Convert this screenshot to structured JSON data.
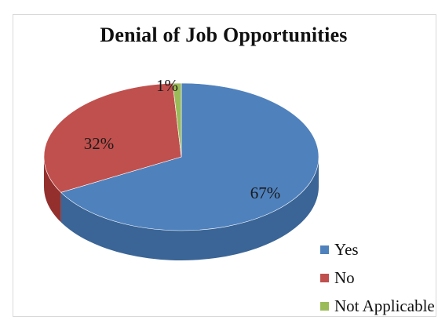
{
  "chart_data": {
    "type": "pie",
    "title": "Denial of Job Opportunities",
    "slices": [
      {
        "label": "Yes",
        "value": 67,
        "display": "67%",
        "color": "#4f81bd",
        "side_color": "#3a6596"
      },
      {
        "label": "No",
        "value": 32,
        "display": "32%",
        "color": "#c0504d",
        "side_color": "#93302e"
      },
      {
        "label": "Not Applicable",
        "value": 1,
        "display": "1%",
        "color": "#9bbb59",
        "side_color": "#74923a"
      }
    ],
    "legend_position": "bottom-right",
    "style": "3d"
  }
}
